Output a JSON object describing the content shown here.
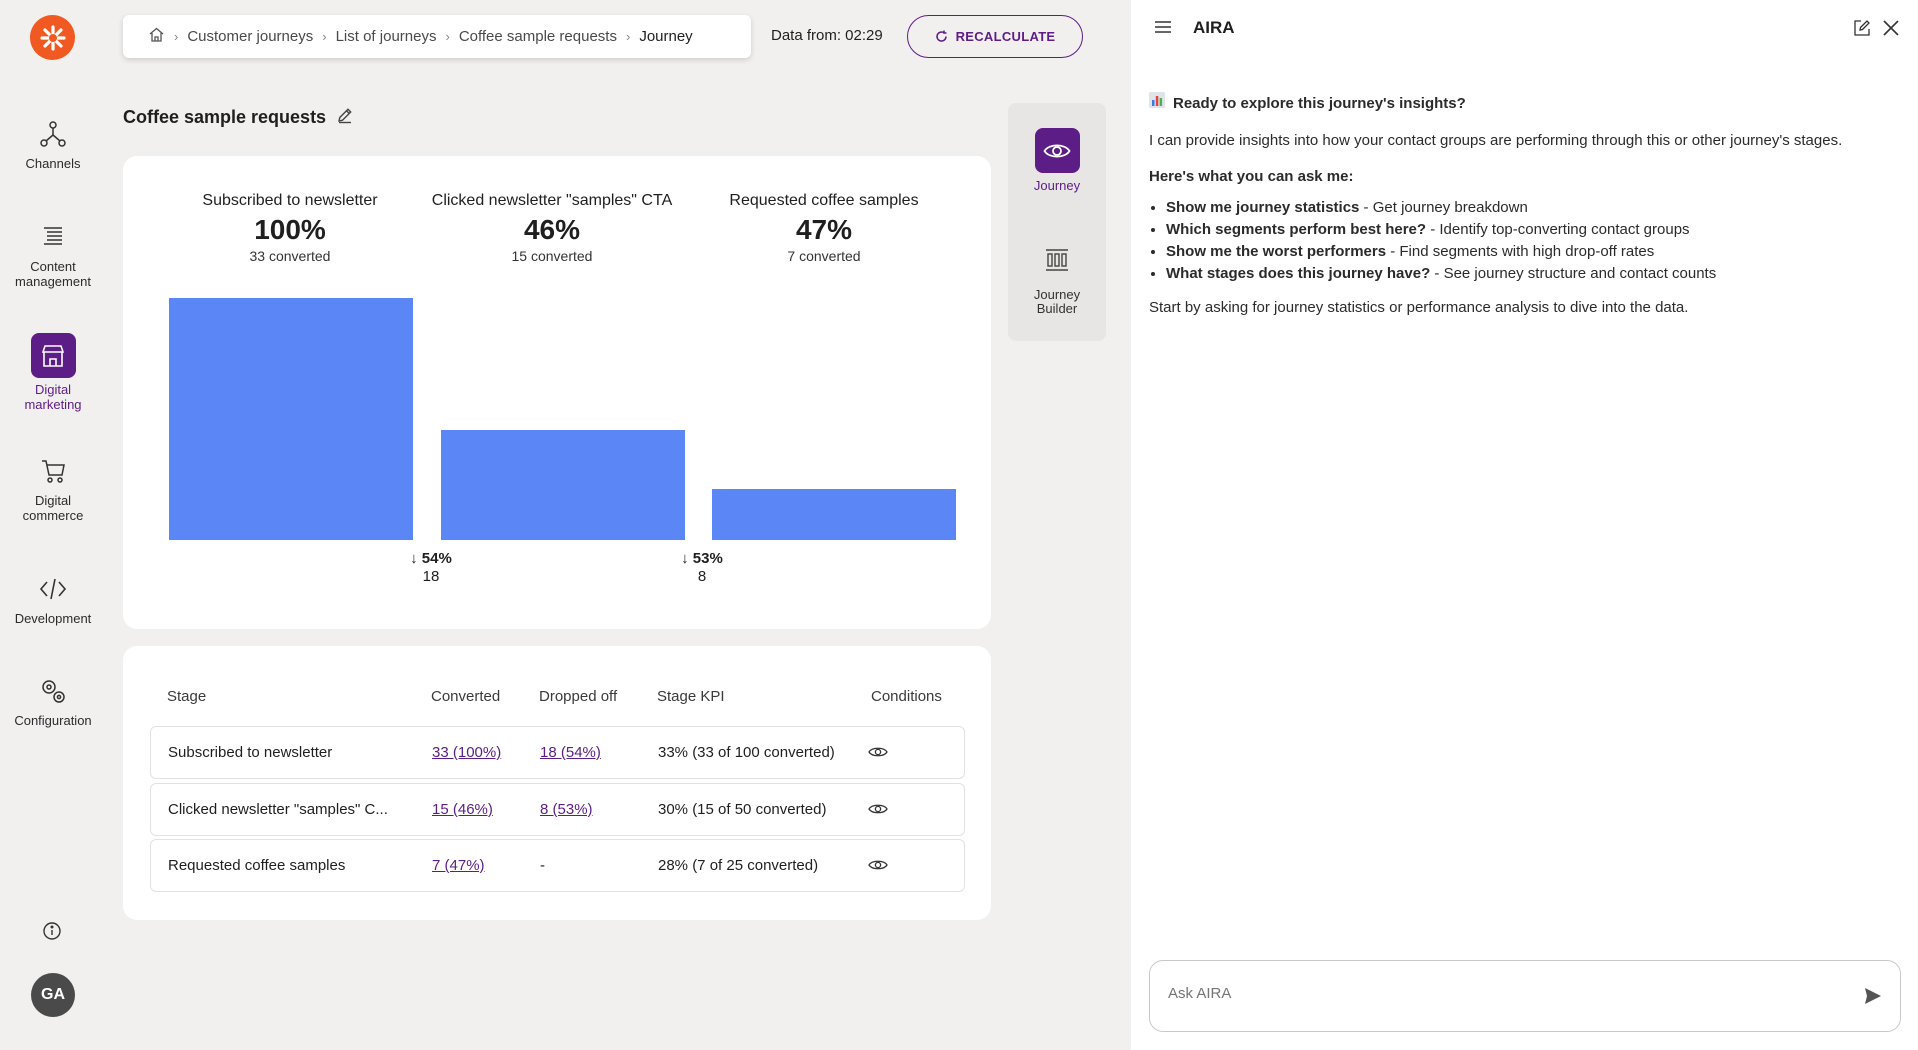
{
  "nav": {
    "logo_icon": "asterisk-logo-icon",
    "items": [
      {
        "label": "Channels",
        "icon": "channels-icon"
      },
      {
        "label": "Content management",
        "icon": "content-icon"
      },
      {
        "label": "Digital marketing",
        "icon": "store-icon",
        "active": true
      },
      {
        "label": "Digital commerce",
        "icon": "cart-icon"
      },
      {
        "label": "Development",
        "icon": "code-icon"
      },
      {
        "label": "Configuration",
        "icon": "gears-icon"
      }
    ],
    "avatar": "GA"
  },
  "breadcrumb": [
    "Customer journeys",
    "List of journeys",
    "Coffee sample requests",
    "Journey"
  ],
  "data_from": "Data from: 02:29",
  "recalculate_label": "RECALCULATE",
  "page_title": "Coffee sample requests",
  "chart_data": {
    "type": "bar",
    "categories": [
      "Subscribed to newsletter",
      "Clicked newsletter \"samples\" CTA",
      "Requested coffee samples"
    ],
    "percentages": [
      "100%",
      "46%",
      "47%"
    ],
    "converted_labels": [
      "33 converted",
      "15 converted",
      "7 converted"
    ],
    "values": [
      33,
      15,
      7
    ],
    "dropoffs": [
      {
        "percent": "↓ 54%",
        "count": "18"
      },
      {
        "percent": "↓ 53%",
        "count": "8"
      }
    ],
    "bar_color": "#5b86f5"
  },
  "table": {
    "headers": [
      "Stage",
      "Converted",
      "Dropped off",
      "Stage KPI",
      "Conditions"
    ],
    "rows": [
      {
        "stage": "Subscribed to newsletter",
        "converted": "33 (100%)",
        "dropped": "18 (54%)",
        "kpi": "33% (33 of 100 converted)"
      },
      {
        "stage": "Clicked newsletter \"samples\" C...",
        "converted": "15 (46%)",
        "dropped": "8 (53%)",
        "kpi": "30% (15 of 50 converted)"
      },
      {
        "stage": "Requested coffee samples",
        "converted": "7 (47%)",
        "dropped": "-",
        "kpi": "28% (7 of 25 converted)"
      }
    ]
  },
  "side_tabs": [
    {
      "label": "Journey",
      "icon": "eye-icon",
      "active": true
    },
    {
      "label": "Journey Builder",
      "icon": "builder-icon"
    }
  ],
  "aira": {
    "title": "AIRA",
    "heading": "Ready to explore this journey's insights?",
    "intro": "I can provide insights into how your contact groups are performing through this or other journey's stages.",
    "ask_heading": "Here's what you can ask me:",
    "suggestions": [
      {
        "q": "Show me journey statistics",
        "d": " - Get journey breakdown"
      },
      {
        "q": "Which segments perform best here?",
        "d": " - Identify top-converting contact groups"
      },
      {
        "q": "Show me the worst performers",
        "d": " - Find segments with high drop-off rates"
      },
      {
        "q": "What stages does this journey have?",
        "d": " - See journey structure and contact counts"
      }
    ],
    "outro": "Start by asking for journey statistics or performance analysis to dive into the data.",
    "input_placeholder": "Ask AIRA"
  },
  "colors": {
    "brand": "#f05a22",
    "accent": "#5c1d87",
    "bar": "#5b86f5"
  }
}
